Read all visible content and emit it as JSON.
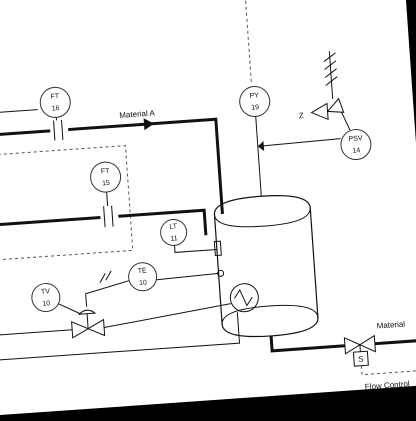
{
  "diagram": {
    "lines": {
      "material_a": "Material A",
      "material": "Material",
      "flow_control": "Flow Control"
    },
    "instruments": [
      {
        "tag": "FT",
        "num": "16"
      },
      {
        "tag": "FT",
        "num": "15"
      },
      {
        "tag": "LT",
        "num": "11"
      },
      {
        "tag": "TE",
        "num": "10"
      },
      {
        "tag": "TV",
        "num": "10"
      },
      {
        "tag": "PY",
        "num": "19"
      },
      {
        "tag": "PSV",
        "num": "14"
      }
    ],
    "labels": {
      "z": "Z",
      "s": "S"
    }
  }
}
